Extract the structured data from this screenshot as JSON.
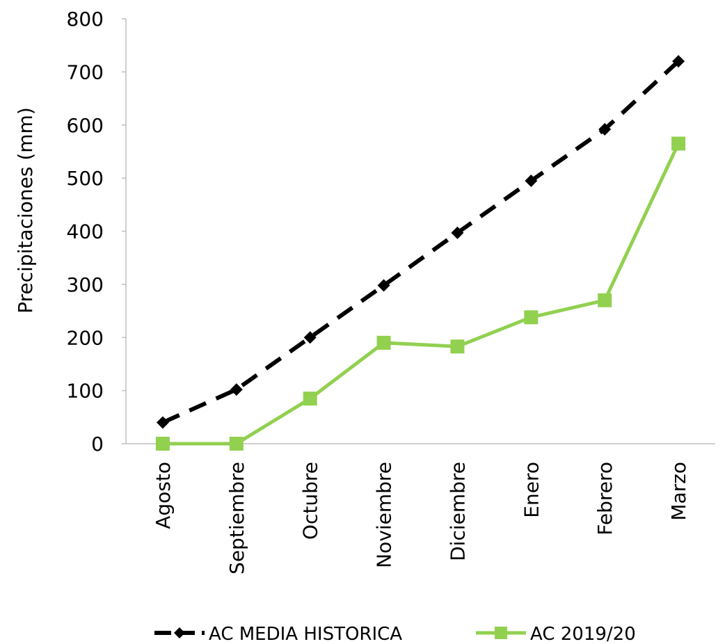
{
  "chart_data": {
    "type": "line",
    "title": "",
    "xlabel": "",
    "ylabel": "Precipitaciones (mm)",
    "ylim": [
      0,
      800
    ],
    "yticks": [
      "0",
      "100",
      "200",
      "300",
      "400",
      "500",
      "600",
      "700",
      "800"
    ],
    "categories": [
      "Agosto",
      "Septiembre",
      "Octubre",
      "Noviembre",
      "Diciembre",
      "Enero",
      "Febrero",
      "Marzo"
    ],
    "grid": false,
    "legend_position": "bottom",
    "series": [
      {
        "name": "AC MEDIA HISTORICA",
        "values": [
          40,
          102,
          200,
          298,
          397,
          495,
          592,
          720
        ],
        "color": "#000000",
        "line_style": "dashed",
        "marker": "diamond"
      },
      {
        "name": "AC 2019/20",
        "values": [
          0,
          0,
          85,
          190,
          183,
          238,
          270,
          565
        ],
        "color": "#92D050",
        "line_style": "solid",
        "marker": "square"
      }
    ]
  }
}
